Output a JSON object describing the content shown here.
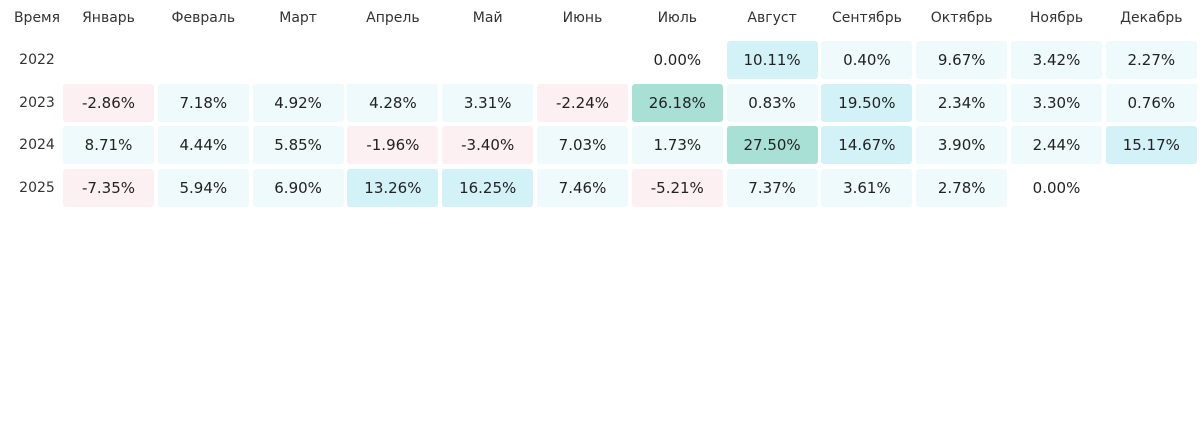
{
  "table": {
    "header": [
      "Время",
      "Январь",
      "Февраль",
      "Март",
      "Апрель",
      "Май",
      "Июнь",
      "Июль",
      "Август",
      "Сентябрь",
      "Октябрь",
      "Ноябрь",
      "Декабрь"
    ],
    "rows": [
      {
        "year": "2022",
        "cells": [
          null,
          null,
          null,
          null,
          null,
          null,
          "0.00%",
          "10.11%",
          "0.40%",
          "9.67%",
          "3.42%",
          "2.27%"
        ]
      },
      {
        "year": "2023",
        "cells": [
          "-2.86%",
          "7.18%",
          "4.92%",
          "4.28%",
          "3.31%",
          "-2.24%",
          "26.18%",
          "0.83%",
          "19.50%",
          "2.34%",
          "3.30%",
          "0.76%"
        ]
      },
      {
        "year": "2024",
        "cells": [
          "8.71%",
          "4.44%",
          "5.85%",
          "-1.96%",
          "-3.40%",
          "7.03%",
          "1.73%",
          "27.50%",
          "14.67%",
          "3.90%",
          "2.44%",
          "15.17%"
        ]
      },
      {
        "year": "2025",
        "cells": [
          "-7.35%",
          "5.94%",
          "6.90%",
          "13.26%",
          "16.25%",
          "7.46%",
          "-5.21%",
          "7.37%",
          "3.61%",
          "2.78%",
          "0.00%",
          null
        ]
      }
    ]
  }
}
